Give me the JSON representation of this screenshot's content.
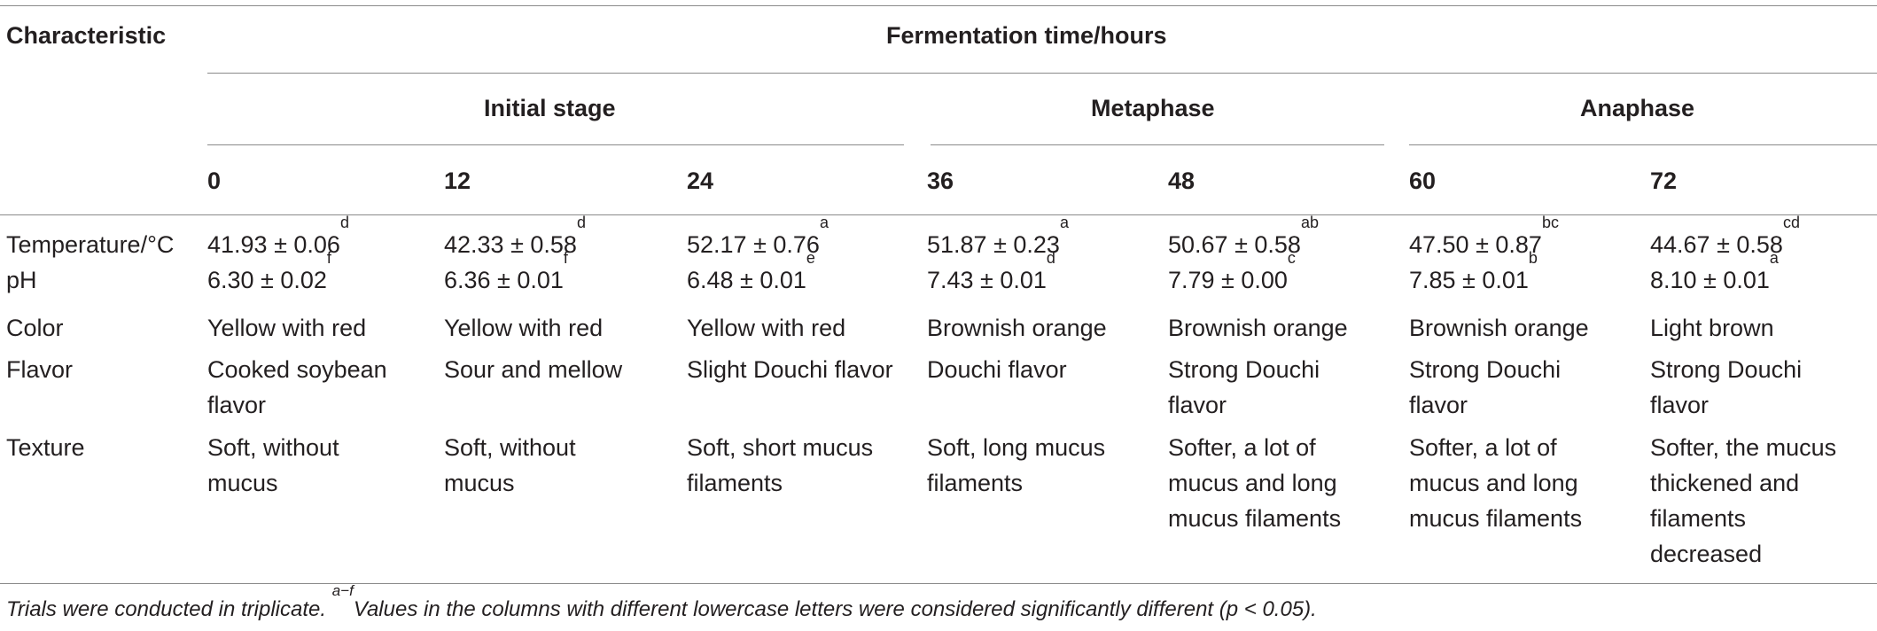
{
  "table": {
    "header": {
      "characteristic": "Characteristic",
      "fermentation_time": "Fermentation time/hours",
      "stages": [
        "Initial stage",
        "Metaphase",
        "Anaphase"
      ],
      "hours": [
        "0",
        "12",
        "24",
        "36",
        "48",
        "60",
        "72"
      ]
    },
    "rows": [
      {
        "label": "Temperature/°C",
        "cells": [
          {
            "v": "41.93 ± 0.06",
            "sup": "d"
          },
          {
            "v": "42.33 ± 0.58",
            "sup": "d"
          },
          {
            "v": "52.17 ± 0.76",
            "sup": "a"
          },
          {
            "v": "51.87 ± 0.23",
            "sup": "a"
          },
          {
            "v": "50.67 ± 0.58",
            "sup": "ab"
          },
          {
            "v": "47.50 ± 0.87",
            "sup": "bc"
          },
          {
            "v": "44.67 ± 0.58",
            "sup": "cd"
          }
        ]
      },
      {
        "label": "pH",
        "cells": [
          {
            "v": "6.30 ± 0.02",
            "sup": "f"
          },
          {
            "v": "6.36 ± 0.01",
            "sup": "f"
          },
          {
            "v": "6.48 ± 0.01",
            "sup": "e"
          },
          {
            "v": "7.43 ± 0.01",
            "sup": "d"
          },
          {
            "v": "7.79 ± 0.00",
            "sup": "c"
          },
          {
            "v": "7.85 ± 0.01",
            "sup": "b"
          },
          {
            "v": "8.10 ± 0.01",
            "sup": "a"
          }
        ]
      },
      {
        "label": "Color",
        "cells": [
          [
            "Yellow with red"
          ],
          [
            "Yellow with red"
          ],
          [
            "Yellow with red"
          ],
          [
            "Brownish orange"
          ],
          [
            "Brownish orange"
          ],
          [
            "Brownish orange"
          ],
          [
            "Light brown"
          ]
        ]
      },
      {
        "label": "Flavor",
        "cells": [
          [
            "Cooked soybean",
            "flavor"
          ],
          [
            "Sour and mellow"
          ],
          [
            "Slight Douchi flavor"
          ],
          [
            "Douchi flavor"
          ],
          [
            "Strong Douchi",
            "flavor"
          ],
          [
            "Strong Douchi",
            "flavor"
          ],
          [
            "Strong Douchi",
            "flavor"
          ]
        ]
      },
      {
        "label": "Texture",
        "cells": [
          [
            "Soft, without",
            "mucus"
          ],
          [
            "Soft, without",
            "mucus"
          ],
          [
            "Soft, short mucus",
            "filaments"
          ],
          [
            "Soft, long mucus",
            "filaments"
          ],
          [
            "Softer, a lot of",
            "mucus and long",
            "mucus filaments"
          ],
          [
            "Softer, a lot of",
            "mucus and long",
            "mucus filaments"
          ],
          [
            "Softer, the mucus",
            "thickened and",
            "filaments",
            "decreased"
          ]
        ]
      }
    ],
    "footnote": {
      "lead": "Trials were conducted in triplicate. ",
      "sup": "a−f",
      "text": "Values in the columns with different lowercase letters were considered significantly different (p < 0.05)."
    }
  }
}
